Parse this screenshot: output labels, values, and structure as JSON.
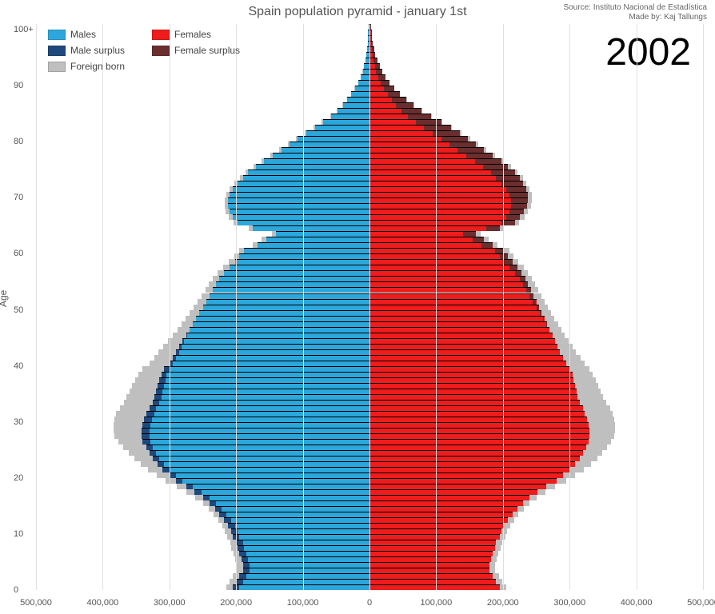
{
  "title": "Spain population pyramid - january 1st",
  "source_line1": "Source: Instituto Nacional de Estadística",
  "source_line2": "Made by: Kaj Tallungs",
  "year": "2002",
  "y_axis_label": "Age",
  "chart": {
    "type": "population-pyramid",
    "background_color": "#ffffff",
    "grid_color": "#e0e0e0",
    "axis_text_color": "#555555",
    "title_color": "#555555",
    "bar_stroke": "#000000",
    "bar_stroke_width": 0.5,
    "xlim": [
      -500000,
      500000
    ],
    "xtick_step": 100000,
    "xtick_labels": [
      "500,000",
      "400,000",
      "300,000",
      "200,000",
      "100,000",
      "0",
      "100,000",
      "200,000",
      "300,000",
      "400,000",
      "500,000"
    ],
    "ylim": [
      0,
      101
    ],
    "ytick_step": 10,
    "ytick_labels": [
      "0",
      "10",
      "20",
      "30",
      "40",
      "50",
      "60",
      "70",
      "80",
      "90",
      "100+"
    ],
    "colors": {
      "males": "#2ca7db",
      "females": "#ee1c1c",
      "male_surplus": "#1f497d",
      "female_surplus": "#6b2e2e",
      "foreign_born": "#bfbfbf"
    },
    "legend": [
      {
        "label": "Males",
        "color_key": "males"
      },
      {
        "label": "Females",
        "color_key": "females"
      },
      {
        "label": "Male surplus",
        "color_key": "male_surplus"
      },
      {
        "label": "Female surplus",
        "color_key": "female_surplus"
      },
      {
        "label": "Foreign born",
        "color_key": "foreign_born"
      }
    ],
    "ages": [
      0,
      1,
      2,
      3,
      4,
      5,
      6,
      7,
      8,
      9,
      10,
      11,
      12,
      13,
      14,
      15,
      16,
      17,
      18,
      19,
      20,
      21,
      22,
      23,
      24,
      25,
      26,
      27,
      28,
      29,
      30,
      31,
      32,
      33,
      34,
      35,
      36,
      37,
      38,
      39,
      40,
      41,
      42,
      43,
      44,
      45,
      46,
      47,
      48,
      49,
      50,
      51,
      52,
      53,
      54,
      55,
      56,
      57,
      58,
      59,
      60,
      61,
      62,
      63,
      64,
      65,
      66,
      67,
      68,
      69,
      70,
      71,
      72,
      73,
      74,
      75,
      76,
      77,
      78,
      79,
      80,
      81,
      82,
      83,
      84,
      85,
      86,
      87,
      88,
      89,
      90,
      91,
      92,
      93,
      94,
      95,
      96,
      97,
      98,
      99,
      100
    ],
    "males": [
      205000,
      200000,
      195000,
      190000,
      190000,
      192000,
      195000,
      198000,
      200000,
      205000,
      208000,
      212000,
      218000,
      225000,
      232000,
      240000,
      250000,
      262000,
      275000,
      290000,
      300000,
      310000,
      318000,
      325000,
      330000,
      335000,
      340000,
      342000,
      342000,
      340000,
      338000,
      335000,
      330000,
      325000,
      322000,
      320000,
      318000,
      315000,
      312000,
      308000,
      300000,
      295000,
      290000,
      285000,
      280000,
      275000,
      270000,
      265000,
      260000,
      255000,
      250000,
      245000,
      240000,
      235000,
      230000,
      225000,
      218000,
      210000,
      202000,
      195000,
      188000,
      168000,
      155000,
      140000,
      175000,
      198000,
      205000,
      210000,
      212000,
      212000,
      210000,
      205000,
      198000,
      190000,
      182000,
      170000,
      158000,
      145000,
      132000,
      120000,
      108000,
      95000,
      82000,
      70000,
      58000,
      48000,
      40000,
      33000,
      27000,
      22000,
      17000,
      13000,
      10000,
      8000,
      6000,
      4500,
      3500,
      2800,
      2200,
      1800,
      1400
    ],
    "females": [
      195000,
      190000,
      185000,
      180000,
      180000,
      182000,
      185000,
      188000,
      190000,
      195000,
      198000,
      202000,
      208000,
      215000,
      222000,
      230000,
      240000,
      252000,
      265000,
      280000,
      290000,
      300000,
      308000,
      315000,
      320000,
      325000,
      328000,
      330000,
      330000,
      328000,
      326000,
      323000,
      320000,
      315000,
      312000,
      310000,
      308000,
      306000,
      304000,
      300000,
      295000,
      290000,
      285000,
      282000,
      278000,
      274000,
      270000,
      266000,
      262000,
      258000,
      254000,
      250000,
      246000,
      242000,
      238000,
      234000,
      228000,
      222000,
      215000,
      208000,
      202000,
      185000,
      172000,
      160000,
      195000,
      218000,
      226000,
      232000,
      236000,
      238000,
      238000,
      235000,
      230000,
      225000,
      218000,
      208000,
      198000,
      185000,
      172000,
      160000,
      148000,
      135000,
      122000,
      108000,
      92000,
      78000,
      66000,
      55000,
      45000,
      37000,
      30000,
      24000,
      19000,
      15000,
      11500,
      8800,
      6800,
      5200,
      4000,
      3100,
      2400
    ],
    "foreign_males": [
      10000,
      10000,
      9500,
      9000,
      9000,
      9000,
      9000,
      9000,
      9000,
      9000,
      9000,
      9000,
      9000,
      9000,
      9500,
      10000,
      11000,
      12000,
      14000,
      16000,
      19000,
      22000,
      25000,
      28000,
      31000,
      34000,
      37000,
      40000,
      42000,
      44000,
      45000,
      45000,
      44000,
      43000,
      42000,
      40000,
      38000,
      36000,
      34000,
      32000,
      30000,
      28000,
      26000,
      24000,
      22000,
      20000,
      18000,
      17000,
      16000,
      15000,
      14000,
      13000,
      12000,
      11000,
      10500,
      10000,
      9500,
      9000,
      8500,
      8000,
      7500,
      7000,
      6800,
      6600,
      6400,
      6200,
      6000,
      5800,
      5600,
      5400,
      5200,
      5000,
      4800,
      4500,
      4200,
      3900,
      3600,
      3300,
      3000,
      2700,
      2400,
      2100,
      1800,
      1500,
      1200,
      1000,
      800,
      650,
      520,
      420,
      340,
      270,
      220,
      170,
      130,
      100,
      80,
      60,
      50,
      40,
      30
    ],
    "foreign_females": [
      9500,
      9500,
      9000,
      8500,
      8500,
      8500,
      8500,
      8500,
      8500,
      8500,
      8500,
      8500,
      8500,
      8500,
      9000,
      9500,
      10500,
      11500,
      13500,
      15500,
      18500,
      21500,
      24000,
      26500,
      29000,
      31500,
      34000,
      36500,
      38500,
      40500,
      41500,
      41500,
      40500,
      39500,
      38500,
      37000,
      35000,
      33000,
      31000,
      29500,
      28000,
      26000,
      24000,
      22000,
      20500,
      19000,
      17500,
      16500,
      15500,
      14500,
      13500,
      12500,
      12000,
      11000,
      10500,
      10000,
      9500,
      9000,
      8500,
      8000,
      7500,
      7200,
      7000,
      6800,
      6600,
      6400,
      6200,
      6000,
      5800,
      5600,
      5400,
      5200,
      5000,
      4700,
      4400,
      4100,
      3800,
      3500,
      3200,
      2900,
      2600,
      2300,
      2000,
      1700,
      1400,
      1150,
      950,
      780,
      620,
      500,
      400,
      320,
      260,
      200,
      160,
      120,
      95,
      75,
      60,
      48,
      38
    ]
  }
}
